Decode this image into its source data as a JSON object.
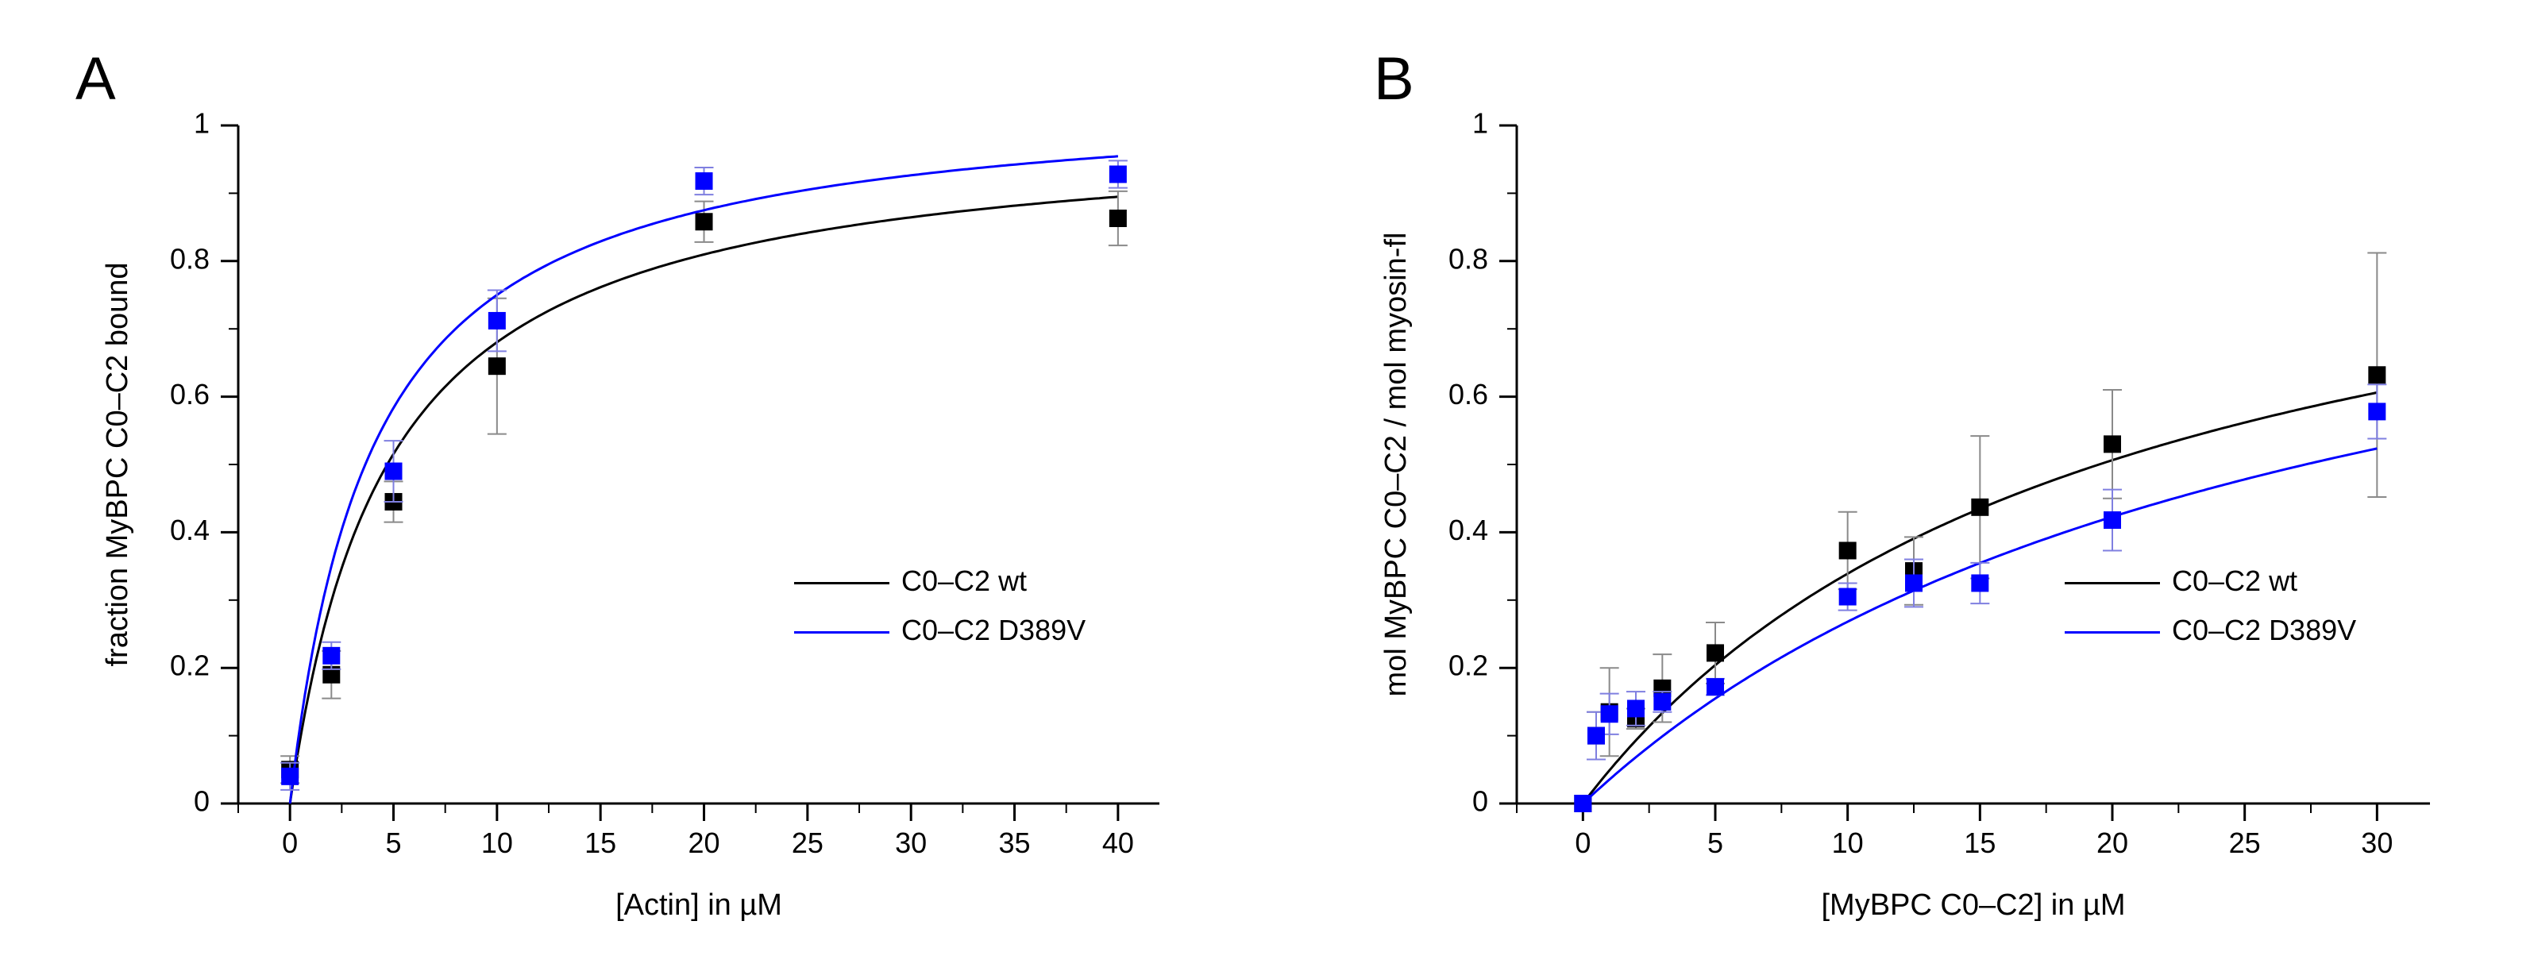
{
  "chart_data": [
    {
      "type": "scatter",
      "panel_label": "A",
      "xlabel": "[Actin] in µM",
      "ylabel": "fraction MyBPC C0–C2 bound",
      "xlim": [
        -2.5,
        42
      ],
      "ylim": [
        0,
        1
      ],
      "xticks": [
        0,
        5,
        10,
        15,
        20,
        25,
        30,
        35,
        40
      ],
      "yticks": [
        0,
        0.2,
        0.4,
        0.6,
        0.8,
        1
      ],
      "ytick_labels": [
        "0",
        "0.2",
        "0.4",
        "0.6",
        "0.8",
        "1"
      ],
      "legend_position": "right-center",
      "series": [
        {
          "name": "C0–C2 wt",
          "color": "#000000",
          "fit": {
            "model": "hyperbolic",
            "bmax": 1.0,
            "kd": 4.7
          },
          "x": [
            0,
            2,
            5,
            10,
            20,
            40
          ],
          "y": [
            0.05,
            0.19,
            0.445,
            0.645,
            0.858,
            0.863
          ],
          "err": [
            0.02,
            0.035,
            0.03,
            0.1,
            0.03,
            0.04
          ]
        },
        {
          "name": "C0–C2 D389V",
          "color": "#0000ff",
          "fit": {
            "model": "hyperbolic",
            "bmax": 1.05,
            "kd": 4.0
          },
          "x": [
            0,
            2,
            5,
            10,
            20,
            40
          ],
          "y": [
            0.04,
            0.218,
            0.49,
            0.712,
            0.918,
            0.928
          ],
          "err": [
            0.02,
            0.02,
            0.045,
            0.045,
            0.02,
            0.02
          ]
        }
      ]
    },
    {
      "type": "scatter",
      "panel_label": "B",
      "xlabel": "[MyBPC C0–C2] in µM",
      "ylabel": "mol MyBPC C0–C2 / mol myosin-fl",
      "xlim": [
        -2.5,
        32
      ],
      "ylim": [
        0,
        1
      ],
      "xticks": [
        0,
        5,
        10,
        15,
        20,
        25,
        30
      ],
      "yticks": [
        0,
        0.2,
        0.4,
        0.6,
        0.8,
        1
      ],
      "ytick_labels": [
        "0",
        "0.2",
        "0.4",
        "0.6",
        "0.8",
        "1"
      ],
      "legend_position": "right-center",
      "series": [
        {
          "name": "C0–C2 wt",
          "color": "#000000",
          "fit": {
            "model": "hyperbolic",
            "bmax": 1.0,
            "kd": 19.5
          },
          "x": [
            0,
            0.5,
            1,
            2,
            3,
            5,
            10,
            12.5,
            15,
            20,
            30
          ],
          "y": [
            0,
            0.1,
            0.135,
            0.125,
            0.17,
            0.222,
            0.373,
            0.343,
            0.437,
            0.53,
            0.632
          ],
          "err": [
            0.0,
            0.035,
            0.065,
            0.015,
            0.05,
            0.045,
            0.057,
            0.05,
            0.105,
            0.08,
            0.18
          ]
        },
        {
          "name": "C0–C2 D389V",
          "color": "#0000ff",
          "fit": {
            "model": "hyperbolic",
            "bmax": 1.0,
            "kd": 27.3
          },
          "x": [
            0,
            0.5,
            1,
            2,
            3,
            5,
            10,
            12.5,
            15,
            20,
            30
          ],
          "y": [
            0,
            0.1,
            0.132,
            0.14,
            0.15,
            0.172,
            0.305,
            0.325,
            0.325,
            0.418,
            0.578
          ],
          "err": [
            0.0,
            0.035,
            0.03,
            0.025,
            0.015,
            0.012,
            0.02,
            0.035,
            0.03,
            0.045,
            0.04
          ]
        }
      ]
    }
  ]
}
